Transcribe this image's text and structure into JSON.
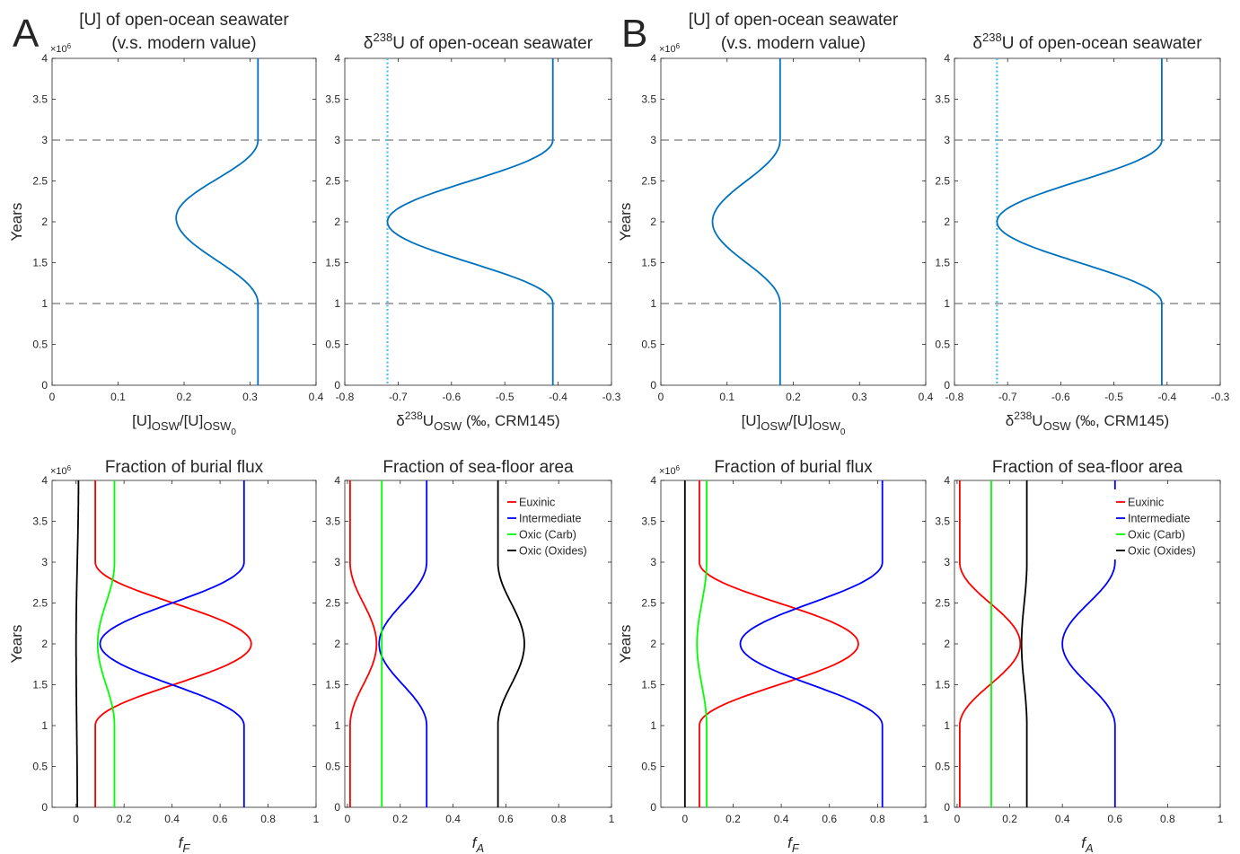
{
  "panel_letters": {
    "a": "A",
    "b": "B"
  },
  "y_exponent": "×10",
  "y_exponent_power": "6",
  "y_label": "Years",
  "panel_titles": {
    "conc_line1": "[U] of open-ocean seawater",
    "conc_line2": "(v.s. modern value)",
    "delta": "δ238U of open-ocean seawater",
    "burial": "Fraction of burial flux",
    "area": "Fraction of sea-floor area"
  },
  "x_labels": {
    "conc": "[U]OSW/[U]OSW0",
    "delta": "δ238UOSW (‰, CRM145)",
    "burial": "fF",
    "area": "fA"
  },
  "legend": [
    "Euxinic",
    "Intermediate",
    "Oxic (Carb)",
    "Oxic (Oxides)"
  ],
  "colors": {
    "model": "#0072BD",
    "euxinic": "#ff0000",
    "intermediate": "#0000ff",
    "oxic_carb": "#00ff00",
    "oxic_oxides": "#000000",
    "guide": "#555555"
  },
  "chart_data": [
    {
      "type": "line",
      "panel": "A",
      "title": "[U] of open-ocean seawater (v.s. modern value)",
      "xlabel": "[U]OSW/[U]OSW0",
      "ylabel": "Years",
      "xlim": [
        0,
        0.4
      ],
      "xticks": [
        0,
        0.1,
        0.2,
        0.3,
        0.4
      ],
      "ylim": [
        0,
        4000000
      ],
      "yticks": [
        0,
        0.5,
        1,
        1.5,
        2,
        2.5,
        3,
        3.5,
        4
      ],
      "y_multiplier": "×10^6",
      "hlines": [
        1000000,
        3000000
      ],
      "series": [
        {
          "color": "#0072BD",
          "shape": "bump",
          "base": 0.312,
          "peak": 0.188,
          "x_end": 0.312,
          "y_start": 1000000,
          "y_peak": 2050000,
          "y_end": 3000000
        }
      ]
    },
    {
      "type": "line",
      "panel": "A",
      "title": "δ238U of open-ocean seawater",
      "xlabel": "δ238UOSW (‰, CRM145)",
      "ylabel": "",
      "xlim": [
        -0.8,
        -0.3
      ],
      "xticks": [
        -0.8,
        -0.7,
        -0.6,
        -0.5,
        -0.4,
        -0.3
      ],
      "ylim": [
        0,
        4000000
      ],
      "yticks": [
        0,
        0.5,
        1,
        1.5,
        2,
        2.5,
        3,
        3.5,
        4
      ],
      "hlines": [
        1000000,
        3000000
      ],
      "vlines_dotted": [
        -0.72
      ],
      "series": [
        {
          "color": "#0072BD",
          "shape": "bump",
          "base": -0.41,
          "peak": -0.72,
          "x_end": -0.41,
          "y_start": 1000000,
          "y_peak": 2000000,
          "y_end": 3000000,
          "y_start_spread": 250000,
          "y_end_spread": 800000
        }
      ]
    },
    {
      "type": "line",
      "panel": "A",
      "title": "Fraction of burial flux",
      "xlabel": "fF",
      "ylabel": "Years",
      "xlim": [
        -0.1,
        1
      ],
      "xticks": [
        0,
        0.2,
        0.4,
        0.6,
        0.8,
        1
      ],
      "ylim": [
        0,
        4000000
      ],
      "yticks": [
        0,
        0.5,
        1,
        1.5,
        2,
        2.5,
        3,
        3.5,
        4
      ],
      "y_multiplier": "×10^6",
      "series": [
        {
          "name": "Euxinic",
          "color": "#ff0000",
          "shape": "bump",
          "base": 0.08,
          "peak": 0.73,
          "x_end": 0.08,
          "y_start": 1000000,
          "y_peak": 2000000,
          "y_end": 3000000
        },
        {
          "name": "Intermediate",
          "color": "#0000ff",
          "shape": "bump",
          "base": 0.7,
          "peak": 0.1,
          "x_end": 0.7,
          "y_start": 1000000,
          "y_peak": 2000000,
          "y_end": 3000000
        },
        {
          "name": "Oxic (Carb)",
          "color": "#00ff00",
          "shape": "bump",
          "base": 0.16,
          "peak": 0.09,
          "x_end": 0.16,
          "y_start": 1000000,
          "y_peak": 2000000,
          "y_end": 3000000
        },
        {
          "name": "Oxic (Oxides)",
          "color": "#000000",
          "shape": "bump",
          "base": 0.005,
          "peak": 0.0,
          "x_end": 0.01,
          "y_start": 0,
          "y_peak": 2000000,
          "y_end": 4000000
        }
      ]
    },
    {
      "type": "line",
      "panel": "A",
      "title": "Fraction of sea-floor area",
      "xlabel": "fA",
      "ylabel": "",
      "xlim": [
        -0.01,
        1
      ],
      "xticks": [
        0,
        0.2,
        0.4,
        0.6,
        0.8,
        1
      ],
      "ylim": [
        0,
        4000000
      ],
      "yticks": [
        0,
        0.5,
        1,
        1.5,
        2,
        2.5,
        3,
        3.5,
        4
      ],
      "legend": [
        "Euxinic",
        "Intermediate",
        "Oxic (Carb)",
        "Oxic (Oxides)"
      ],
      "legend_loc": "top-right",
      "series": [
        {
          "name": "Euxinic",
          "color": "#ff0000",
          "shape": "bump",
          "base": 0.01,
          "peak": 0.11,
          "x_end": 0.01,
          "y_start": 1000000,
          "y_peak": 2000000,
          "y_end": 3000000
        },
        {
          "name": "Intermediate",
          "color": "#0000ff",
          "shape": "bump",
          "base": 0.3,
          "peak": 0.12,
          "x_end": 0.3,
          "y_start": 1000000,
          "y_peak": 2000000,
          "y_end": 3000000
        },
        {
          "name": "Oxic (Carb)",
          "color": "#00ff00",
          "shape": "bump",
          "base": 0.13,
          "peak": 0.13,
          "x_end": 0.13,
          "y_start": 0,
          "y_peak": 2000000,
          "y_end": 4000000
        },
        {
          "name": "Oxic (Oxides)",
          "color": "#000000",
          "shape": "bump",
          "base": 0.57,
          "peak": 0.67,
          "x_end": 0.57,
          "y_start": 1000000,
          "y_peak": 2000000,
          "y_end": 3000000
        }
      ]
    },
    {
      "type": "line",
      "panel": "B",
      "title": "[U] of open-ocean seawater (v.s. modern value)",
      "xlabel": "[U]OSW/[U]OSW0",
      "ylabel": "Years",
      "xlim": [
        0,
        0.4
      ],
      "xticks": [
        0,
        0.1,
        0.2,
        0.3,
        0.4
      ],
      "ylim": [
        0,
        4000000
      ],
      "yticks": [
        0,
        0.5,
        1,
        1.5,
        2,
        2.5,
        3,
        3.5,
        4
      ],
      "y_multiplier": "×10^6",
      "hlines": [
        1000000,
        3000000
      ],
      "series": [
        {
          "color": "#0072BD",
          "shape": "bump",
          "base": 0.18,
          "peak": 0.078,
          "x_end": 0.18,
          "y_start": 1000000,
          "y_peak": 2000000,
          "y_end": 3000000
        }
      ]
    },
    {
      "type": "line",
      "panel": "B",
      "title": "δ238U of open-ocean seawater",
      "xlabel": "δ238UOSW (‰, CRM145)",
      "ylabel": "",
      "xlim": [
        -0.8,
        -0.3
      ],
      "xticks": [
        -0.8,
        -0.7,
        -0.6,
        -0.5,
        -0.4,
        -0.3
      ],
      "ylim": [
        0,
        4000000
      ],
      "yticks": [
        0,
        0.5,
        1,
        1.5,
        2,
        2.5,
        3,
        3.5,
        4
      ],
      "hlines": [
        1000000,
        3000000
      ],
      "vlines_dotted": [
        -0.72
      ],
      "series": [
        {
          "color": "#0072BD",
          "shape": "bump",
          "base": -0.41,
          "peak": -0.72,
          "x_end": -0.41,
          "y_start": 1000000,
          "y_peak": 2000000,
          "y_end": 3000000,
          "y_start_spread": 250000,
          "y_end_spread": 800000
        }
      ]
    },
    {
      "type": "line",
      "panel": "B",
      "title": "Fraction of burial flux",
      "xlabel": "fF",
      "ylabel": "Years",
      "xlim": [
        -0.1,
        1
      ],
      "xticks": [
        0,
        0.2,
        0.4,
        0.6,
        0.8,
        1
      ],
      "ylim": [
        0,
        4000000
      ],
      "yticks": [
        0,
        0.5,
        1,
        1.5,
        2,
        2.5,
        3,
        3.5,
        4
      ],
      "y_multiplier": "×10^6",
      "series": [
        {
          "name": "Euxinic",
          "color": "#ff0000",
          "shape": "bump",
          "base": 0.06,
          "peak": 0.72,
          "x_end": 0.06,
          "y_start": 1000000,
          "y_peak": 2000000,
          "y_end": 3000000
        },
        {
          "name": "Intermediate",
          "color": "#0000ff",
          "shape": "bump",
          "base": 0.82,
          "peak": 0.23,
          "x_end": 0.82,
          "y_start": 1000000,
          "y_peak": 2000000,
          "y_end": 3000000
        },
        {
          "name": "Oxic (Carb)",
          "color": "#00ff00",
          "shape": "bump",
          "base": 0.09,
          "peak": 0.05,
          "x_end": 0.09,
          "y_start": 1000000,
          "y_peak": 2000000,
          "y_end": 3000000
        },
        {
          "name": "Oxic (Oxides)",
          "color": "#000000",
          "shape": "bump",
          "base": 0.0,
          "peak": 0.0,
          "x_end": 0.0,
          "y_start": 0,
          "y_peak": 2000000,
          "y_end": 4000000
        }
      ]
    },
    {
      "type": "line",
      "panel": "B",
      "title": "Fraction of sea-floor area",
      "xlabel": "fA",
      "ylabel": "",
      "xlim": [
        -0.01,
        1
      ],
      "xticks": [
        0,
        0.2,
        0.4,
        0.6,
        0.8,
        1
      ],
      "ylim": [
        0,
        4000000
      ],
      "yticks": [
        0,
        0.5,
        1,
        1.5,
        2,
        2.5,
        3,
        3.5,
        4
      ],
      "legend": [
        "Euxinic",
        "Intermediate",
        "Oxic (Carb)",
        "Oxic (Oxides)"
      ],
      "legend_loc": "top-right",
      "series": [
        {
          "name": "Euxinic",
          "color": "#ff0000",
          "shape": "bump",
          "base": 0.01,
          "peak": 0.24,
          "x_end": 0.01,
          "y_start": 1000000,
          "y_peak": 2000000,
          "y_end": 3000000
        },
        {
          "name": "Intermediate",
          "color": "#0000ff",
          "shape": "bump",
          "base": 0.6,
          "peak": 0.4,
          "x_end": 0.6,
          "y_start": 1000000,
          "y_peak": 2000000,
          "y_end": 3000000
        },
        {
          "name": "Oxic (Carb)",
          "color": "#00ff00",
          "shape": "bump",
          "base": 0.13,
          "peak": 0.13,
          "x_end": 0.13,
          "y_start": 0,
          "y_peak": 2000000,
          "y_end": 4000000
        },
        {
          "name": "Oxic (Oxides)",
          "color": "#000000",
          "shape": "bump",
          "base": 0.265,
          "peak": 0.245,
          "x_end": 0.265,
          "y_start": 1000000,
          "y_peak": 2000000,
          "y_end": 3000000
        }
      ]
    }
  ]
}
